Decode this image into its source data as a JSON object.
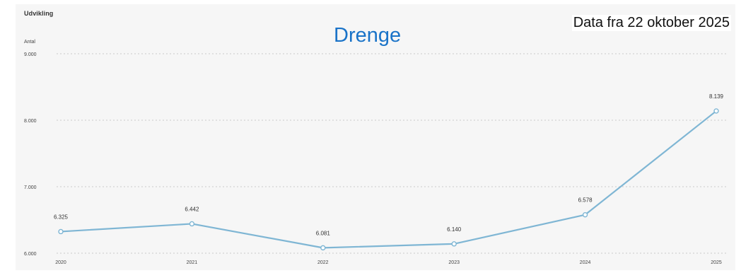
{
  "header": {
    "section_title": "Udvikling",
    "title": "Drenge",
    "date_note": "Data fra 22 oktober 2025"
  },
  "chart_data": {
    "type": "line",
    "ylabel": "Antal",
    "xlabel": "",
    "x": [
      "2020",
      "2021",
      "2022",
      "2023",
      "2024",
      "2025"
    ],
    "series": [
      {
        "values": [
          6325,
          6442,
          6081,
          6140,
          6578,
          8139
        ],
        "labels": [
          "6.325",
          "6.442",
          "6.081",
          "6.140",
          "6.578",
          "8.139"
        ]
      }
    ],
    "ylim": [
      6000,
      9000
    ],
    "yticks": [
      6000,
      7000,
      8000,
      9000
    ],
    "ytick_labels": [
      "6.000",
      "7.000",
      "8.000",
      "9.000"
    ],
    "grid": true,
    "line_color": "#7fb6d4",
    "marker_fill": "#ffffff"
  }
}
